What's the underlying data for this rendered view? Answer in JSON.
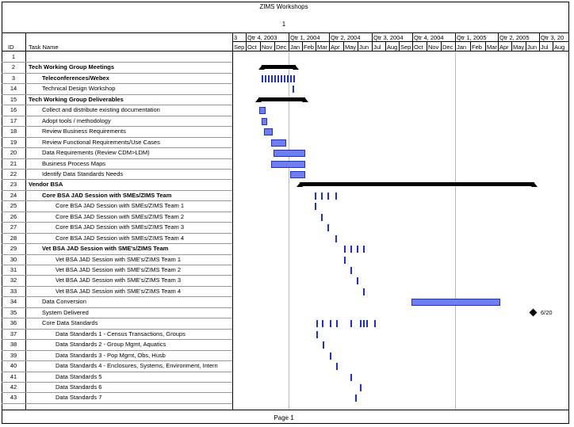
{
  "header": {
    "title": "ZIMS Workshops",
    "page_number": "1"
  },
  "columns": {
    "id": "ID",
    "name": "Task Name"
  },
  "timescale": {
    "quarters": [
      "3",
      "Qtr 4, 2003",
      "Qtr 1, 2004",
      "Qtr 2, 2004",
      "Qtr 3, 2004",
      "Qtr 4, 2004",
      "Qtr 1, 2005",
      "Qtr 2, 2005",
      "Qtr 3, 20"
    ],
    "months": [
      "Sep",
      "Oct",
      "Nov",
      "Dec",
      "Jan",
      "Feb",
      "Mar",
      "Apr",
      "May",
      "Jun",
      "Jul",
      "Aug",
      "Sep",
      "Oct",
      "Nov",
      "Dec",
      "Jan",
      "Feb",
      "Mar",
      "Apr",
      "May",
      "Jun",
      "Jul",
      "Aug"
    ]
  },
  "tasks": [
    {
      "id": "1",
      "name": "",
      "level": 0,
      "bold": false
    },
    {
      "id": "2",
      "name": "Tech Working Group Meetings",
      "level": 0,
      "bold": true
    },
    {
      "id": "3",
      "name": "Teleconferences/Webex",
      "level": 1,
      "bold": true
    },
    {
      "id": "14",
      "name": "Technical Design Workshop",
      "level": 1,
      "bold": false
    },
    {
      "id": "15",
      "name": "Tech Working Group Deliverables",
      "level": 0,
      "bold": true
    },
    {
      "id": "16",
      "name": "Collect and distribute existing documentation",
      "level": 1,
      "bold": false
    },
    {
      "id": "17",
      "name": "Adopt tools / methodology",
      "level": 1,
      "bold": false
    },
    {
      "id": "18",
      "name": "Review Business Requirements",
      "level": 1,
      "bold": false
    },
    {
      "id": "19",
      "name": "Review Functional Requirements/Use Cases",
      "level": 1,
      "bold": false
    },
    {
      "id": "20",
      "name": "Data Requirements (Review CDM>LDM)",
      "level": 1,
      "bold": false
    },
    {
      "id": "21",
      "name": "Business Process Maps",
      "level": 1,
      "bold": false
    },
    {
      "id": "22",
      "name": "Identify Data Standards Needs",
      "level": 1,
      "bold": false
    },
    {
      "id": "23",
      "name": "Vendor BSA",
      "level": 0,
      "bold": true
    },
    {
      "id": "24",
      "name": "Core BSA JAD Session with SMEs/ZIMS Team",
      "level": 1,
      "bold": true
    },
    {
      "id": "25",
      "name": "Core BSA JAD Session with SMEs/ZIMS Team 1",
      "level": 2,
      "bold": false
    },
    {
      "id": "26",
      "name": "Core BSA JAD Session with SMEs/ZIMS Team 2",
      "level": 2,
      "bold": false
    },
    {
      "id": "27",
      "name": "Core BSA JAD Session with SMEs/ZIMS Team 3",
      "level": 2,
      "bold": false
    },
    {
      "id": "28",
      "name": "Core BSA JAD Session with SMEs/ZIMS Team 4",
      "level": 2,
      "bold": false
    },
    {
      "id": "29",
      "name": "Vet BSA JAD Session with SME's/ZIMS Team",
      "level": 1,
      "bold": true
    },
    {
      "id": "30",
      "name": "Vet BSA JAD Session with SME's/ZIMS Team 1",
      "level": 2,
      "bold": false
    },
    {
      "id": "31",
      "name": "Vet BSA JAD Session with SME's/ZIMS Team 2",
      "level": 2,
      "bold": false
    },
    {
      "id": "32",
      "name": "Vet BSA JAD Session with SME's/ZIMS Team 3",
      "level": 2,
      "bold": false
    },
    {
      "id": "33",
      "name": "Vet BSA JAD Session with SME's/ZIMS Team 4",
      "level": 2,
      "bold": false
    },
    {
      "id": "34",
      "name": "Data Conversion",
      "level": 1,
      "bold": false
    },
    {
      "id": "35",
      "name": "System Delivered",
      "level": 1,
      "bold": false
    },
    {
      "id": "36",
      "name": "Core Data Standards",
      "level": 1,
      "bold": false
    },
    {
      "id": "37",
      "name": "Data Standards 1 - Census Transactions, Groups",
      "level": 2,
      "bold": false
    },
    {
      "id": "38",
      "name": "Data Standards 2 - Group Mgmt, Aquatics",
      "level": 2,
      "bold": false
    },
    {
      "id": "39",
      "name": "Data Standards 3 - Pop Mgmt, Obs, Husb",
      "level": 2,
      "bold": false
    },
    {
      "id": "40",
      "name": "Data Standards 4 - Enclosures, Systems, Environment, Intern",
      "level": 2,
      "bold": false
    },
    {
      "id": "41",
      "name": "Data Standards 5",
      "level": 2,
      "bold": false
    },
    {
      "id": "42",
      "name": "Data Standards 6",
      "level": 2,
      "bold": false
    },
    {
      "id": "43",
      "name": "Data Standards 7",
      "level": 2,
      "bold": false
    }
  ],
  "milestone_label": "6/20",
  "footer": {
    "page_label": "Page 1"
  },
  "colors": {
    "bar_fill": "#6f7ff0",
    "bar_border": "#1c2fd0",
    "summary": "#000000"
  }
}
